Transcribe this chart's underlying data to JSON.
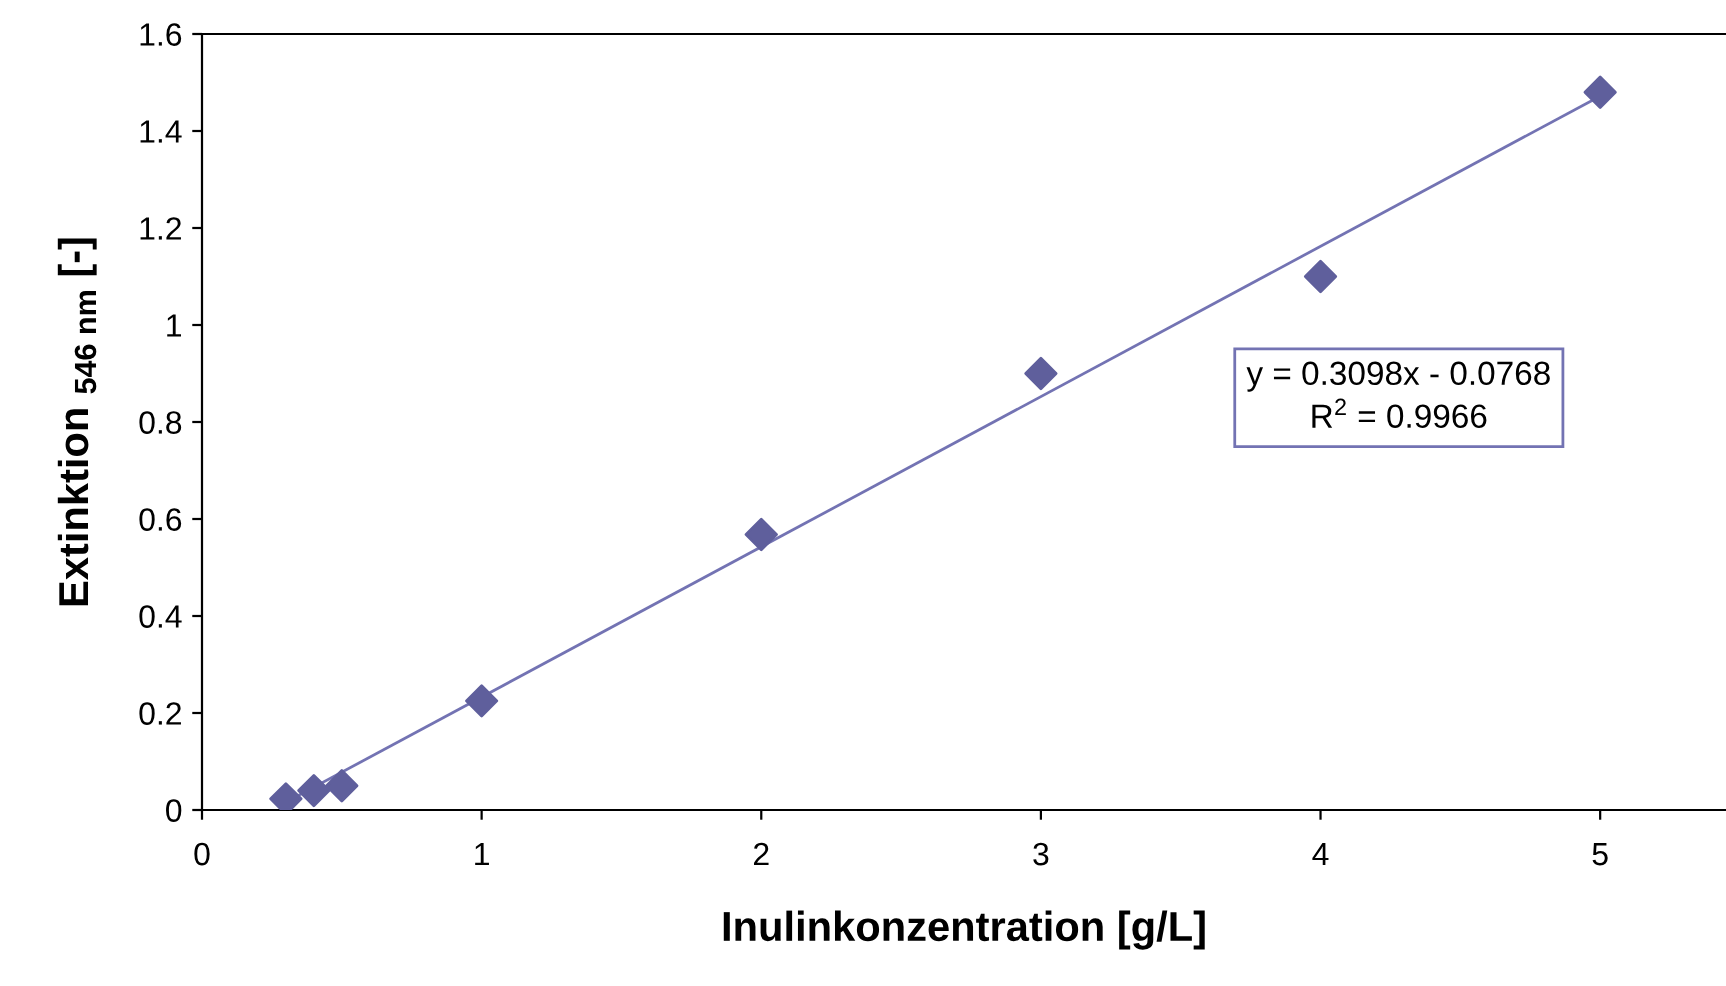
{
  "chart_data": {
    "type": "scatter",
    "xlabel": "Inulinkonzentration [g/L]",
    "ylabel": "Extinktion $_{546 nm}$ [-]",
    "series": [
      {
        "color": "#5f5f9c",
        "marker": "diamond",
        "x": [
          0.3,
          0.4,
          0.5,
          1,
          2,
          3,
          4,
          5
        ],
        "values": [
          0.023,
          0.04,
          0.05,
          0.225,
          0.568,
          0.9,
          1.1,
          1.48
        ]
      },
      {
        "type": "line",
        "color": "#7373b3",
        "marker": "none",
        "line_style": "solid",
        "x": [
          0.3,
          5
        ],
        "values": [
          0.016,
          1.472
        ]
      }
    ],
    "annotations": [
      "y = 0.3098x - 0.0768\nR$^{2}$ = 0.9966"
    ],
    "xlim": [
      0,
      5.45
    ],
    "ylim": [
      0,
      1.6
    ],
    "xticks": [
      0,
      1,
      2,
      3,
      4,
      5
    ],
    "yticks": [
      0,
      0.2,
      0.4,
      0.6,
      0.8,
      1,
      1.2,
      1.4,
      1.6
    ],
    "grid": false,
    "legend": false
  }
}
